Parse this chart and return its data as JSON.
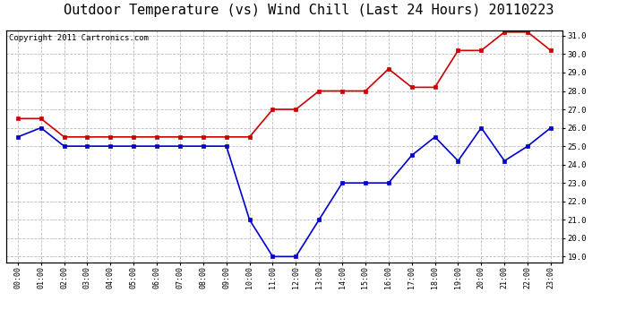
{
  "title": "Outdoor Temperature (vs) Wind Chill (Last 24 Hours) 20110223",
  "copyright": "Copyright 2011 Cartronics.com",
  "hours": [
    "00:00",
    "01:00",
    "02:00",
    "03:00",
    "04:00",
    "05:00",
    "06:00",
    "07:00",
    "08:00",
    "09:00",
    "10:00",
    "11:00",
    "12:00",
    "13:00",
    "14:00",
    "15:00",
    "16:00",
    "17:00",
    "18:00",
    "19:00",
    "20:00",
    "21:00",
    "22:00",
    "23:00"
  ],
  "temp": [
    26.5,
    26.5,
    25.5,
    25.5,
    25.5,
    25.5,
    25.5,
    25.5,
    25.5,
    25.5,
    25.5,
    27.0,
    27.0,
    28.0,
    28.0,
    28.0,
    29.2,
    28.2,
    28.2,
    30.2,
    30.2,
    31.2,
    31.2,
    30.2
  ],
  "wind_chill": [
    25.5,
    26.0,
    25.0,
    25.0,
    25.0,
    25.0,
    25.0,
    25.0,
    25.0,
    25.0,
    21.0,
    19.0,
    19.0,
    21.0,
    23.0,
    23.0,
    23.0,
    24.5,
    25.5,
    24.2,
    26.0,
    24.2,
    25.0,
    26.0
  ],
  "temp_color": "#cc0000",
  "wind_chill_color": "#0000cc",
  "bg_color": "#ffffff",
  "grid_color": "#bbbbbb",
  "ylim_min": 19.0,
  "ylim_max": 31.0,
  "ytick_step": 1.0,
  "title_fontsize": 11,
  "copyright_fontsize": 6.5,
  "marker": "s",
  "marker_size": 2.5,
  "line_width": 1.2
}
